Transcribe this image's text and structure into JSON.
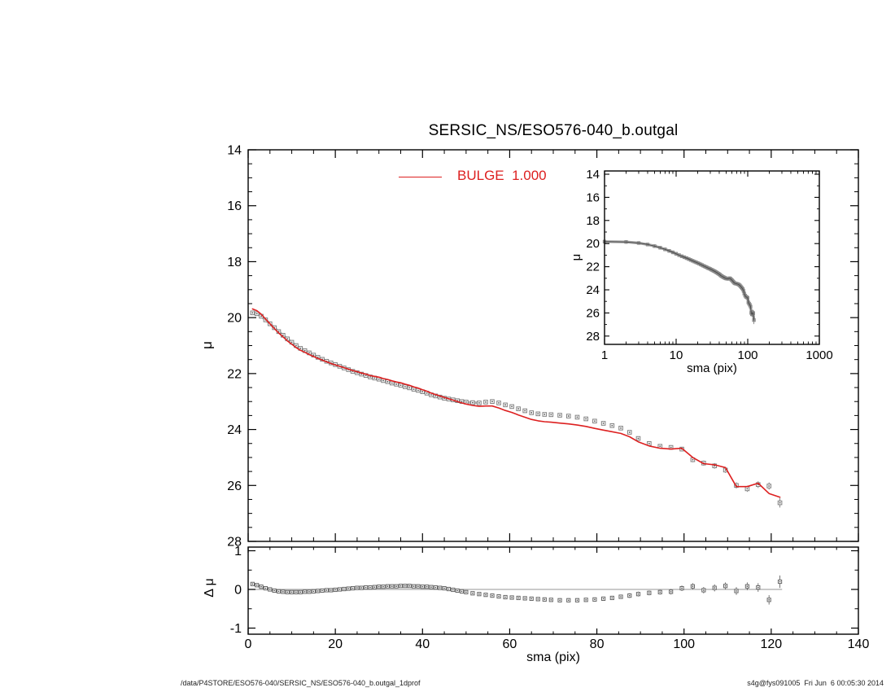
{
  "page": {
    "background": "#ffffff",
    "footer_left": "/data/P4STORE/ESO576-040/SERSIC_NS/ESO576-040_b.outgal_1dprof",
    "footer_right": "s4g@fys091005  Fri Jun  6 00:05:30 2014"
  },
  "chart_data": {
    "type": "scatter",
    "title": "SERSIC_NS/ESO576-040_b.outgal",
    "legend": {
      "label": "BULGE  1.000",
      "position": "top-center-of-main-panel"
    },
    "colors": {
      "model": "#dd2020",
      "data_marker": "#808080",
      "marker_dot": "#555555",
      "error_bar": "#777777",
      "zero_line": "#aaaaaa",
      "axis": "#000000",
      "background": "#ffffff"
    },
    "main_panel": {
      "xlabel": "sma (pix)",
      "ylabel": "μ",
      "xlim": [
        0,
        140
      ],
      "ylim_top_to_bottom": [
        14,
        28
      ],
      "x_major_ticks": [
        0,
        20,
        40,
        60,
        80,
        100,
        120,
        140
      ],
      "x_minor_step": 5,
      "x_tick_labels_shown": false,
      "y_major_ticks": [
        14,
        16,
        18,
        20,
        22,
        24,
        26,
        28
      ],
      "y_minor_step": 0.5,
      "grid": false
    },
    "residual_panel": {
      "xlabel": "sma (pix)",
      "ylabel": "Δ μ",
      "xlim": [
        0,
        140
      ],
      "ylim": [
        -1.15,
        1.15
      ],
      "x_major_ticks": [
        0,
        20,
        40,
        60,
        80,
        100,
        120,
        140
      ],
      "x_minor_step": 5,
      "y_major_ticks": [
        1,
        0,
        -1
      ],
      "y_minor_step": 0.5,
      "zero_line_value": 0,
      "zero_line_x_extent": [
        0,
        122.5
      ],
      "grid": false
    },
    "inset_panel": {
      "xlabel": "sma (pix)",
      "ylabel": "μ",
      "xscale": "log",
      "xlim": [
        1,
        1000
      ],
      "ylim_top_to_bottom": [
        14,
        28
      ],
      "x_major_ticks": [
        1,
        10,
        100,
        1000
      ],
      "y_major_ticks": [
        14,
        16,
        18,
        20,
        22,
        24,
        26,
        28
      ],
      "y_minor_step": 1,
      "grid": false
    },
    "series": {
      "description": "Gray open squares = observed 1D surface-brightness profile μ(sma); red line = BULGE Sersic model (model μ = mu − residual); bottom panel = residual Δμ = data − model.",
      "sma": [
        1,
        2,
        3,
        4,
        5,
        6,
        7,
        8,
        9,
        10,
        11,
        12,
        13,
        14,
        15,
        16,
        17,
        18,
        19,
        20,
        21,
        22,
        23,
        24,
        25,
        26,
        27,
        28,
        29,
        30,
        31,
        32,
        33,
        34,
        35,
        36,
        37,
        38,
        39,
        40,
        41,
        42,
        43,
        44,
        45,
        46,
        47,
        48,
        49,
        50,
        51.5,
        53,
        54.5,
        56,
        57.5,
        59,
        60.5,
        62,
        63.5,
        65,
        66.5,
        68,
        69.5,
        71.5,
        73.5,
        75.5,
        77.5,
        79.5,
        81.5,
        83.5,
        85.5,
        87.5,
        89.5,
        92,
        94.5,
        97,
        99.5,
        102,
        104.5,
        107,
        109.5,
        112,
        114.5,
        117,
        119.5,
        122
      ],
      "mu": [
        19.83,
        19.86,
        19.95,
        20.08,
        20.22,
        20.36,
        20.5,
        20.63,
        20.76,
        20.88,
        21.0,
        21.1,
        21.18,
        21.26,
        21.34,
        21.42,
        21.49,
        21.56,
        21.62,
        21.68,
        21.74,
        21.8,
        21.86,
        21.92,
        21.97,
        22.02,
        22.07,
        22.12,
        22.16,
        22.2,
        22.25,
        22.29,
        22.34,
        22.38,
        22.42,
        22.47,
        22.51,
        22.56,
        22.6,
        22.65,
        22.7,
        22.76,
        22.8,
        22.84,
        22.88,
        22.91,
        22.94,
        22.97,
        23.0,
        23.02,
        23.04,
        23.05,
        23.02,
        23.0,
        23.05,
        23.12,
        23.18,
        23.26,
        23.33,
        23.4,
        23.44,
        23.46,
        23.47,
        23.49,
        23.52,
        23.56,
        23.62,
        23.7,
        23.78,
        23.86,
        23.95,
        24.1,
        24.32,
        24.5,
        24.6,
        24.64,
        24.7,
        25.08,
        25.2,
        25.3,
        25.45,
        26.0,
        26.12,
        25.97,
        26.02,
        26.62
      ],
      "mu_err": [
        0.02,
        0.02,
        0.02,
        0.02,
        0.02,
        0.02,
        0.02,
        0.02,
        0.02,
        0.02,
        0.02,
        0.02,
        0.02,
        0.02,
        0.02,
        0.02,
        0.02,
        0.02,
        0.02,
        0.02,
        0.02,
        0.02,
        0.02,
        0.02,
        0.02,
        0.02,
        0.02,
        0.02,
        0.02,
        0.02,
        0.02,
        0.02,
        0.02,
        0.02,
        0.02,
        0.02,
        0.02,
        0.02,
        0.02,
        0.02,
        0.02,
        0.02,
        0.02,
        0.02,
        0.02,
        0.02,
        0.02,
        0.02,
        0.02,
        0.02,
        0.02,
        0.02,
        0.02,
        0.02,
        0.02,
        0.02,
        0.02,
        0.02,
        0.02,
        0.02,
        0.02,
        0.02,
        0.02,
        0.03,
        0.03,
        0.03,
        0.03,
        0.03,
        0.03,
        0.03,
        0.03,
        0.04,
        0.04,
        0.04,
        0.04,
        0.05,
        0.05,
        0.06,
        0.06,
        0.07,
        0.07,
        0.08,
        0.08,
        0.09,
        0.1,
        0.14
      ],
      "residual_mu_minus_model": [
        0.14,
        0.11,
        0.07,
        0.03,
        0.0,
        -0.03,
        -0.05,
        -0.06,
        -0.07,
        -0.07,
        -0.07,
        -0.07,
        -0.06,
        -0.06,
        -0.05,
        -0.04,
        -0.03,
        -0.02,
        -0.02,
        -0.01,
        0.0,
        0.01,
        0.02,
        0.03,
        0.04,
        0.04,
        0.05,
        0.05,
        0.06,
        0.07,
        0.07,
        0.08,
        0.08,
        0.08,
        0.09,
        0.09,
        0.09,
        0.08,
        0.08,
        0.07,
        0.07,
        0.06,
        0.05,
        0.04,
        0.03,
        0.01,
        -0.01,
        -0.03,
        -0.05,
        -0.07,
        -0.1,
        -0.12,
        -0.14,
        -0.16,
        -0.18,
        -0.2,
        -0.21,
        -0.22,
        -0.23,
        -0.24,
        -0.25,
        -0.26,
        -0.27,
        -0.28,
        -0.28,
        -0.28,
        -0.27,
        -0.26,
        -0.24,
        -0.22,
        -0.19,
        -0.16,
        -0.12,
        -0.09,
        -0.07,
        -0.06,
        0.03,
        0.08,
        -0.02,
        0.04,
        0.09,
        -0.04,
        0.08,
        0.05,
        -0.27,
        0.2
      ]
    }
  }
}
